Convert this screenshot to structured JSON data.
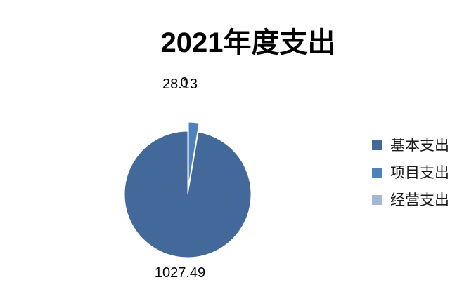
{
  "chart_data": {
    "type": "pie",
    "title": "2021年度支出",
    "categories": [
      "基本支出",
      "项目支出",
      "经营支出"
    ],
    "values": [
      1027.49,
      28.13,
      0
    ],
    "data_labels": [
      "1027.49",
      "28.13",
      "0"
    ],
    "colors": [
      "#43689a",
      "#4f81bd",
      "#a5b7d7"
    ],
    "legend": {
      "position": "right",
      "entries": [
        "基本支出",
        "项目支出",
        "经营支出"
      ]
    },
    "exploded": [
      false,
      true,
      false
    ]
  }
}
